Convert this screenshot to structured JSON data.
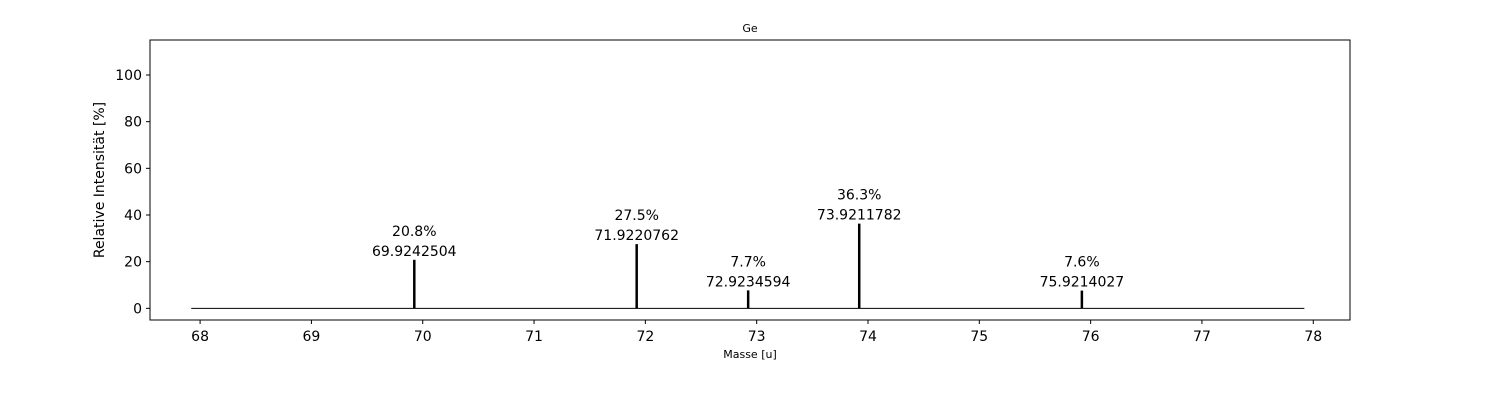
{
  "chart_data": {
    "type": "bar",
    "title": "Ge",
    "xlabel": "Masse [u]",
    "ylabel": "Relative Intensität [%]",
    "xlim": [
      67.55,
      78.33
    ],
    "ylim": [
      -5,
      115
    ],
    "xticks": [
      68,
      69,
      70,
      71,
      72,
      73,
      74,
      75,
      76,
      77,
      78
    ],
    "yticks": [
      0,
      20,
      40,
      60,
      80,
      100
    ],
    "baseline": [
      67.92,
      77.92
    ],
    "grid": false,
    "peaks": [
      {
        "x": 69.9242504,
        "y": 20.8,
        "label_pct": "20.8%",
        "label_mass": "69.9242504"
      },
      {
        "x": 71.9220762,
        "y": 27.5,
        "label_pct": "27.5%",
        "label_mass": "71.9220762"
      },
      {
        "x": 72.9234594,
        "y": 7.7,
        "label_pct": "7.7%",
        "label_mass": "72.9234594"
      },
      {
        "x": 73.9211782,
        "y": 36.3,
        "label_pct": "36.3%",
        "label_mass": "73.9211782"
      },
      {
        "x": 75.9214027,
        "y": 7.6,
        "label_pct": "7.6%",
        "label_mass": "75.9214027"
      }
    ],
    "colors": {
      "line": "#000000",
      "axes": "#000000"
    }
  }
}
